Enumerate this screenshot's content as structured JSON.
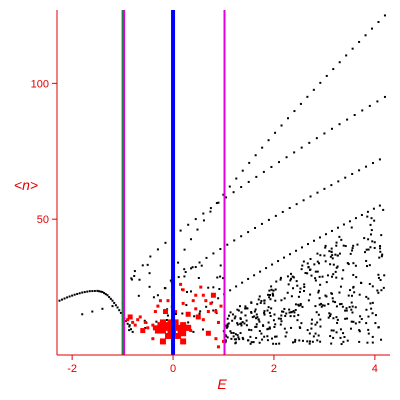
{
  "chart_data": {
    "type": "scatter",
    "xlabel": "E",
    "ylabel": "<n>",
    "xlim": [
      -2.3,
      4.3
    ],
    "ylim": [
      0,
      127
    ],
    "xticks": [
      -2,
      0,
      2,
      4
    ],
    "yticks": [
      50,
      100
    ],
    "grid": false,
    "colors": {
      "axis": "#e00000",
      "points_black": "#000000",
      "points_red": "#ff0000",
      "line_blue": "#0000ff",
      "line_magenta": "#e000e0",
      "line_green": "#208040"
    },
    "vertical_lines": [
      {
        "x": -1.0,
        "color": "#208040",
        "style": "green"
      },
      {
        "x": -0.97,
        "color": "#e000e0",
        "style": "magenta"
      },
      {
        "x": 0.0,
        "color": "#0000ff",
        "style": "blue-thick"
      },
      {
        "x": 1.02,
        "color": "#e000e0",
        "style": "magenta"
      }
    ],
    "bands": [
      {
        "name": "top",
        "x0": 0.1,
        "y0": 34,
        "x1": 4.2,
        "y1": 125
      },
      {
        "name": "second",
        "x0": -0.6,
        "y0": 33,
        "x1": 4.2,
        "y1": 95
      },
      {
        "name": "third",
        "x0": -0.3,
        "y0": 22,
        "x1": 4.1,
        "y1": 72
      },
      {
        "name": "fourth",
        "x0": 0.3,
        "y0": 12,
        "x1": 4.1,
        "y1": 55
      }
    ],
    "left_arc": [
      [
        -2.25,
        20.0
      ],
      [
        -2.1,
        21.2
      ],
      [
        -1.95,
        22.2
      ],
      [
        -1.8,
        23.0
      ],
      [
        -1.65,
        23.5
      ],
      [
        -1.5,
        23.6
      ],
      [
        -1.4,
        23.2
      ],
      [
        -1.3,
        22.0
      ],
      [
        -1.2,
        20.0
      ],
      [
        -1.1,
        17.5
      ],
      [
        -1.0,
        14.5
      ],
      [
        -0.9,
        11.5
      ],
      [
        -0.8,
        8.5
      ]
    ],
    "left_line": [
      [
        -1.8,
        15.0
      ],
      [
        -1.6,
        16.0
      ],
      [
        -1.4,
        17.0
      ],
      [
        -1.2,
        18.0
      ],
      [
        -1.0,
        19.0
      ]
    ],
    "red_points": [
      [
        0.0,
        10
      ],
      [
        0.05,
        11
      ],
      [
        -0.05,
        9
      ],
      [
        0.1,
        10
      ],
      [
        -0.1,
        11
      ],
      [
        0.15,
        9
      ],
      [
        -0.15,
        10
      ],
      [
        0.2,
        11
      ],
      [
        -0.2,
        9
      ],
      [
        0.25,
        10
      ],
      [
        -0.25,
        11
      ],
      [
        0.3,
        10
      ],
      [
        -0.3,
        9
      ],
      [
        0.0,
        8
      ],
      [
        0.05,
        12
      ],
      [
        -0.05,
        12
      ],
      [
        0.1,
        7
      ],
      [
        -0.1,
        7
      ],
      [
        0.2,
        8
      ],
      [
        -0.2,
        12
      ],
      [
        -0.35,
        10
      ],
      [
        0.35,
        9
      ],
      [
        -0.4,
        11
      ],
      [
        -0.5,
        10
      ],
      [
        -0.55,
        12
      ],
      [
        -0.6,
        9
      ],
      [
        -0.65,
        14
      ],
      [
        -0.7,
        13
      ],
      [
        -0.75,
        11
      ],
      [
        -0.8,
        12
      ],
      [
        -0.85,
        14
      ],
      [
        -0.9,
        13
      ],
      [
        -0.3,
        18
      ],
      [
        -0.25,
        20
      ],
      [
        -0.35,
        16
      ],
      [
        -0.15,
        16
      ],
      [
        0.05,
        16
      ],
      [
        0.2,
        24
      ],
      [
        0.15,
        26
      ],
      [
        0.45,
        17
      ],
      [
        0.5,
        14
      ],
      [
        0.6,
        13
      ],
      [
        0.65,
        20
      ],
      [
        0.7,
        16
      ],
      [
        0.75,
        19
      ],
      [
        0.8,
        22
      ],
      [
        0.85,
        16
      ],
      [
        0.9,
        12
      ],
      [
        0.95,
        18
      ],
      [
        0.6,
        22
      ],
      [
        0.7,
        8
      ],
      [
        0.85,
        6
      ],
      [
        1.0,
        5
      ],
      [
        0.9,
        3
      ],
      [
        0.2,
        5
      ],
      [
        -0.2,
        5
      ],
      [
        -0.4,
        6
      ],
      [
        0.4,
        20
      ],
      [
        0.55,
        25
      ],
      [
        -0.1,
        20
      ],
      [
        0.3,
        15
      ],
      [
        0.45,
        22
      ],
      [
        0.2,
        19
      ]
    ]
  }
}
